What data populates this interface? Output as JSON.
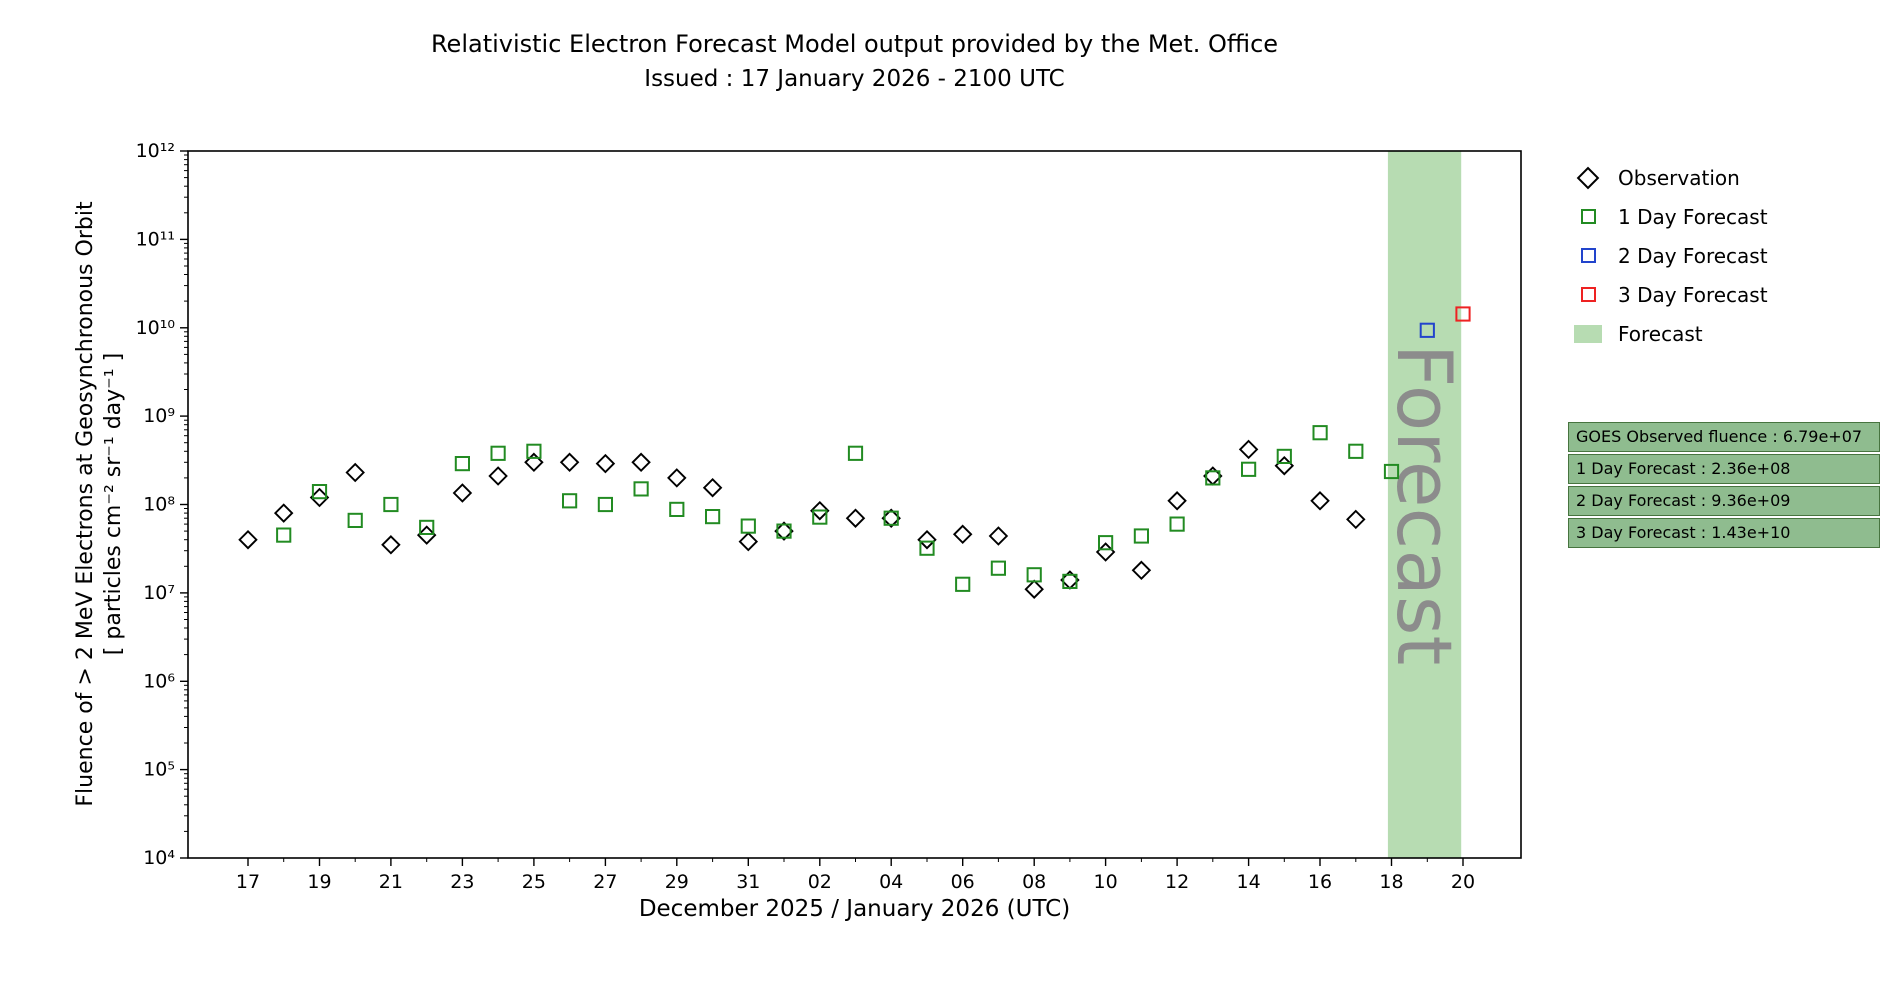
{
  "chart_data": {
    "type": "scatter",
    "title": "Relativistic Electron Forecast Model output provided by the Met. Office",
    "subtitle": "Issued : 17 January 2026 - 2100 UTC",
    "xlabel": "December 2025 / January 2026 (UTC)",
    "ylabel_line1": "Fluence of > 2 MeV Electrons at Geosynchronous Orbit",
    "ylabel_line2": "[ particles cm⁻² sr⁻¹ day⁻¹ ]",
    "y_axis": {
      "scale": "log",
      "min": 10000.0,
      "max": 1000000000000.0
    },
    "x_axis_note": "x values are day offsets from 17 December 2025",
    "y_ticks": {
      "exponents": [
        4,
        5,
        6,
        7,
        8,
        9,
        10,
        11,
        12
      ],
      "labels": [
        "10⁴",
        "10⁵",
        "10⁶",
        "10⁷",
        "10⁸",
        "10⁹",
        "10¹⁰",
        "10¹¹",
        "10¹²"
      ]
    },
    "x_ticks": {
      "days": [
        0,
        2,
        4,
        6,
        8,
        10,
        12,
        14,
        16,
        18,
        20,
        22,
        24,
        26,
        28,
        30,
        32,
        34
      ],
      "labels": [
        "17",
        "19",
        "21",
        "23",
        "25",
        "27",
        "29",
        "31",
        "02",
        "04",
        "06",
        "08",
        "10",
        "12",
        "14",
        "16",
        "18",
        "20"
      ]
    },
    "series": [
      {
        "name": "Observation",
        "marker": "diamond",
        "color": "#000000",
        "days": [
          0,
          1,
          2,
          3,
          4,
          5,
          6,
          7,
          8,
          9,
          10,
          11,
          12,
          13,
          14,
          15,
          16,
          17,
          18,
          19,
          20,
          21,
          22,
          23,
          24,
          25,
          26,
          27,
          28,
          29,
          30,
          31
        ],
        "values": [
          40000000.0,
          80000000.0,
          120000000.0,
          230000000.0,
          35000000.0,
          45000000.0,
          135000000.0,
          210000000.0,
          300000000.0,
          300000000.0,
          290000000.0,
          300000000.0,
          200000000.0,
          155000000.0,
          38000000.0,
          50000000.0,
          85000000.0,
          70000000.0,
          70000000.0,
          40000000.0,
          46000000.0,
          44000000.0,
          11000000.0,
          14000000.0,
          29000000.0,
          18000000.0,
          110000000.0,
          210000000.0,
          420000000.0,
          275000000.0,
          110000000.0,
          67900000.0
        ]
      },
      {
        "name": "1 Day Forecast",
        "marker": "square",
        "color": "#228B22",
        "days": [
          1,
          2,
          3,
          4,
          5,
          6,
          7,
          8,
          9,
          10,
          11,
          12,
          13,
          14,
          15,
          16,
          17,
          18,
          19,
          20,
          21,
          22,
          23,
          24,
          25,
          26,
          27,
          28,
          29,
          30,
          31,
          32
        ],
        "values": [
          45000000.0,
          140000000.0,
          66000000.0,
          100000000.0,
          55000000.0,
          290000000.0,
          380000000.0,
          400000000.0,
          110000000.0,
          100000000.0,
          150000000.0,
          88000000.0,
          73000000.0,
          57000000.0,
          50000000.0,
          72000000.0,
          380000000.0,
          70000000.0,
          32000000.0,
          12500000.0,
          19000000.0,
          16000000.0,
          13500000.0,
          37000000.0,
          44000000.0,
          60000000.0,
          200000000.0,
          250000000.0,
          350000000.0,
          650000000.0,
          400000000.0,
          236000000.0
        ]
      },
      {
        "name": "2 Day Forecast",
        "marker": "square",
        "color": "#2244cc",
        "days": [
          33
        ],
        "values": [
          9360000000.0
        ]
      },
      {
        "name": "3 Day Forecast",
        "marker": "square",
        "color": "#ee2222",
        "days": [
          34
        ],
        "values": [
          14300000000.0
        ]
      }
    ],
    "forecast_band": {
      "start_day": 31.9,
      "end_day": 33.95,
      "color": "#b7dcb2",
      "label": "Forecast",
      "label_color": "#8c8c8c"
    }
  },
  "legend": {
    "items": [
      {
        "label": "Observation",
        "marker": "diamond",
        "color": "#000000"
      },
      {
        "label": "1 Day Forecast",
        "marker": "square",
        "color": "#228B22"
      },
      {
        "label": "2 Day Forecast",
        "marker": "square",
        "color": "#2244cc"
      },
      {
        "label": "3 Day Forecast",
        "marker": "square",
        "color": "#ee2222"
      },
      {
        "label": "Forecast",
        "marker": "patch",
        "color": "#b7dcb2"
      }
    ]
  },
  "info_box": {
    "bg": "#8FBC8F",
    "rows": [
      "GOES Observed fluence : 6.79e+07",
      "1 Day Forecast : 2.36e+08",
      "2 Day Forecast : 9.36e+09",
      "3 Day Forecast : 1.43e+10"
    ]
  }
}
